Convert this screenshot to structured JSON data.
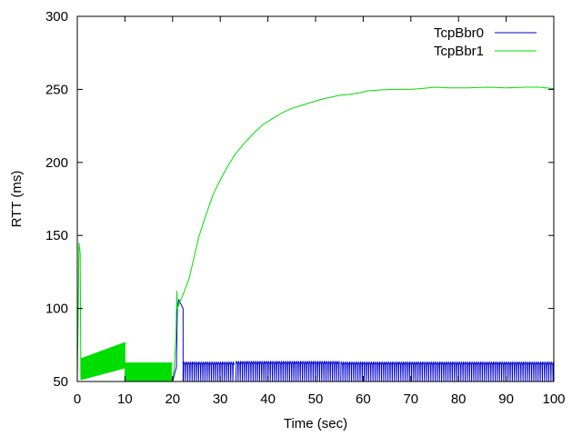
{
  "chart_data": {
    "type": "line",
    "title": "",
    "xlabel": "Time (sec)",
    "ylabel": "RTT (ms)",
    "xlim": [
      0,
      100
    ],
    "ylim": [
      50,
      300
    ],
    "xticks": [
      0,
      10,
      20,
      30,
      40,
      50,
      60,
      70,
      80,
      90,
      100
    ],
    "yticks": [
      50,
      100,
      150,
      200,
      250,
      300
    ],
    "grid": false,
    "legend_position": "top-right",
    "series": [
      {
        "name": "TcpBbr0",
        "color": "#0000cc",
        "segments": [
          {
            "kind": "points",
            "points": [
              [
                20.0,
                50
              ],
              [
                20.8,
                60
              ],
              [
                21.0,
                100
              ],
              [
                21.3,
                106
              ],
              [
                22.2,
                100
              ],
              [
                22.2,
                50
              ]
            ]
          },
          {
            "kind": "sawtooth",
            "start": 22.3,
            "end": 33.0,
            "period": 0.45,
            "low": 50,
            "high": 63.5
          },
          {
            "kind": "sawtooth",
            "start": 33.3,
            "end": 55.0,
            "period": 0.45,
            "low": 50,
            "high": 64
          },
          {
            "kind": "sawtooth",
            "start": 55.3,
            "end": 100.0,
            "period": 0.45,
            "low": 50,
            "high": 63.5
          }
        ]
      },
      {
        "name": "TcpBbr1",
        "color": "#00dd00",
        "segments": [
          {
            "kind": "points",
            "points": [
              [
                0.0,
                52
              ],
              [
                0.2,
                100
              ],
              [
                0.35,
                145
              ],
              [
                0.6,
                138
              ],
              [
                0.75,
                52
              ]
            ]
          },
          {
            "kind": "sawtooth",
            "start": 0.8,
            "end": 10.0,
            "period": 0.18,
            "low": 51,
            "high": 66,
            "high_end": 77,
            "low_end": 59
          },
          {
            "kind": "sawtooth",
            "start": 10.0,
            "end": 19.8,
            "period": 0.18,
            "low": 50,
            "high": 63,
            "high_end": 63,
            "low_end": 50
          },
          {
            "kind": "points",
            "points": [
              [
                19.8,
                50
              ],
              [
                20.3,
                58
              ],
              [
                20.7,
                80
              ],
              [
                20.9,
                112
              ],
              [
                21.0,
                100
              ],
              [
                21.5,
                104
              ],
              [
                22.5,
                112
              ],
              [
                23.5,
                121
              ],
              [
                24.5,
                135
              ],
              [
                25.5,
                149
              ],
              [
                27.0,
                164
              ],
              [
                28.5,
                178
              ],
              [
                30.0,
                188
              ],
              [
                31.5,
                197
              ],
              [
                33.0,
                205
              ],
              [
                35.0,
                213
              ],
              [
                37.0,
                220
              ],
              [
                39.0,
                226
              ],
              [
                41.0,
                230
              ],
              [
                43.0,
                234
              ],
              [
                45.0,
                237
              ],
              [
                47.0,
                239
              ],
              [
                49.0,
                241
              ],
              [
                51.0,
                243
              ],
              [
                53.0,
                244.5
              ],
              [
                55.0,
                246
              ],
              [
                57.0,
                246.5
              ],
              [
                59.0,
                247.5
              ],
              [
                61.0,
                249
              ],
              [
                63.0,
                249.5
              ],
              [
                66.0,
                250
              ],
              [
                70.0,
                250
              ],
              [
                72.0,
                250.5
              ],
              [
                75.0,
                251.5
              ],
              [
                78.0,
                251
              ],
              [
                82.0,
                251
              ],
              [
                86.0,
                251.5
              ],
              [
                90.0,
                251
              ],
              [
                94.0,
                251.5
              ],
              [
                97.0,
                251.5
              ],
              [
                100.0,
                250.5
              ]
            ]
          }
        ]
      }
    ]
  }
}
